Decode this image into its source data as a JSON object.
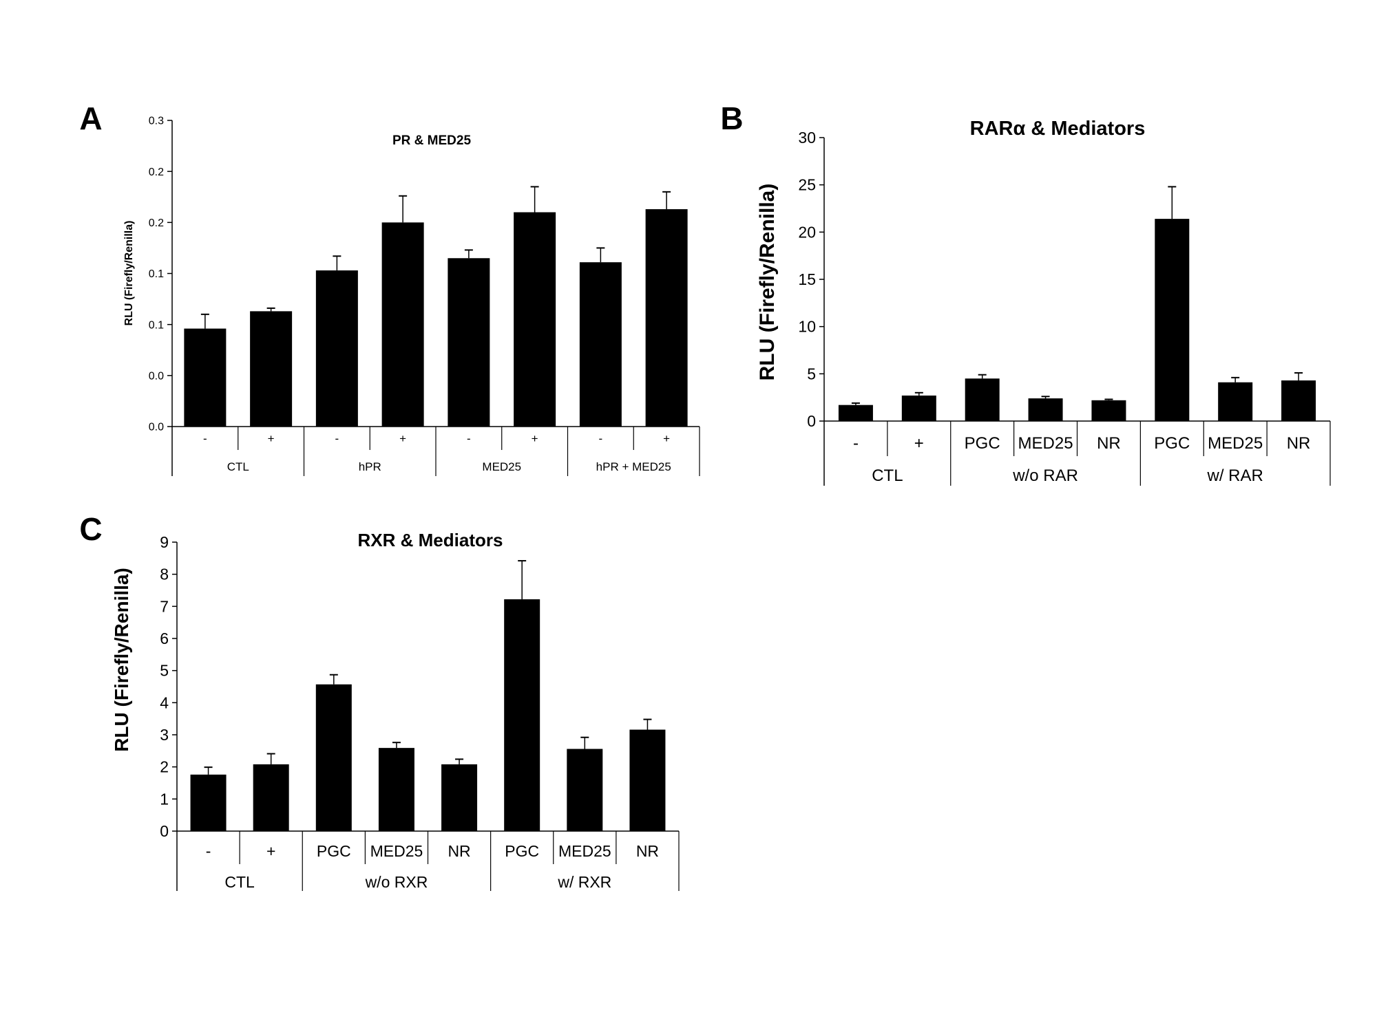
{
  "chart_data": [
    {
      "type": "bar",
      "panel_letter": "A",
      "title": "PR & MED25",
      "ylabel": "RLU (Firefly/Renilla)",
      "ylim": [
        0,
        0.3
      ],
      "yticks": [
        0,
        0.05,
        0.1,
        0.15,
        0.2,
        0.25,
        0.3
      ],
      "ytick_labels": [
        "0.0",
        "0.0",
        "0.1",
        "0.1",
        "0.2",
        "0.2",
        "0.3"
      ],
      "categories": [
        "-",
        "+",
        "-",
        "+",
        "-",
        "+",
        "-",
        "+"
      ],
      "groups": [
        {
          "label": "CTL",
          "count": 2
        },
        {
          "label": "hPR",
          "count": 2
        },
        {
          "label": "MED25",
          "count": 2
        },
        {
          "label": "hPR + MED25",
          "count": 2
        }
      ],
      "values": [
        0.096,
        0.113,
        0.153,
        0.2,
        0.165,
        0.21,
        0.161,
        0.213
      ],
      "errors": [
        0.014,
        0.003,
        0.014,
        0.026,
        0.008,
        0.025,
        0.014,
        0.017
      ],
      "bar_color": "#000000"
    },
    {
      "type": "bar",
      "panel_letter": "B",
      "title": "RARα & Mediators",
      "ylabel": "RLU (Firefly/Renilla)",
      "ylim": [
        0,
        30
      ],
      "yticks": [
        0,
        5,
        10,
        15,
        20,
        25,
        30
      ],
      "ytick_labels": [
        "0",
        "5",
        "10",
        "15",
        "20",
        "25",
        "30"
      ],
      "categories": [
        "-",
        "+",
        "PGC",
        "MED25",
        "NR",
        "PGC",
        "MED25",
        "NR"
      ],
      "groups": [
        {
          "label": "CTL",
          "count": 2
        },
        {
          "label": "w/o RAR",
          "count": 3
        },
        {
          "label": "w/ RAR",
          "count": 3
        }
      ],
      "values": [
        1.7,
        2.7,
        4.5,
        2.4,
        2.2,
        21.4,
        4.1,
        4.3
      ],
      "errors": [
        0.2,
        0.3,
        0.4,
        0.2,
        0.1,
        3.4,
        0.5,
        0.8
      ],
      "bar_color": "#000000"
    },
    {
      "type": "bar",
      "panel_letter": "C",
      "title": "RXR & Mediators",
      "ylabel": "RLU (Firefly/Renilla)",
      "ylim": [
        0,
        9
      ],
      "yticks": [
        0,
        1,
        2,
        3,
        4,
        5,
        6,
        7,
        8,
        9
      ],
      "ytick_labels": [
        "0",
        "1",
        "2",
        "3",
        "4",
        "5",
        "6",
        "7",
        "8",
        "9"
      ],
      "categories": [
        "-",
        "+",
        "PGC",
        "MED25",
        "NR",
        "PGC",
        "MED25",
        "NR"
      ],
      "groups": [
        {
          "label": "CTL",
          "count": 2
        },
        {
          "label": "w/o RXR",
          "count": 3
        },
        {
          "label": "w/ RXR",
          "count": 3
        }
      ],
      "values": [
        1.76,
        2.08,
        4.57,
        2.59,
        2.08,
        7.22,
        2.56,
        3.16
      ],
      "errors": [
        0.23,
        0.33,
        0.3,
        0.17,
        0.16,
        1.2,
        0.36,
        0.32
      ],
      "bar_color": "#000000"
    }
  ]
}
